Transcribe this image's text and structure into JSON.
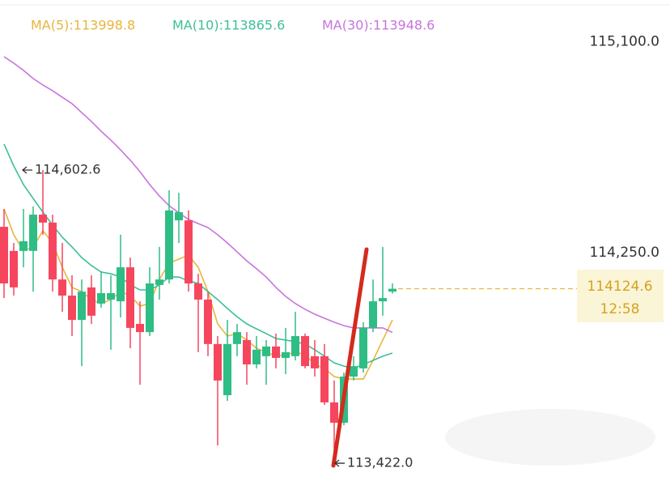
{
  "chart_data": {
    "type": "candlestick",
    "ylim": [
      113350.4,
      115287.4
    ],
    "yticks": [
      {
        "value": 115100,
        "label": "115,100.0"
      },
      {
        "value": 114250,
        "label": "114,250.0"
      }
    ],
    "up_color": "#2ebd85",
    "down_color": "#f6465d",
    "candles": {
      "open": [
        114374,
        114277,
        114277,
        114277,
        114423,
        114391,
        114162,
        114097,
        113999,
        114130,
        114065,
        114081,
        114074,
        114211,
        113983,
        113950,
        114140,
        114162,
        114400,
        114400,
        114146,
        114081,
        113902,
        113696,
        113902,
        113918,
        113820,
        113853,
        113892,
        113846,
        113853,
        113934,
        113853,
        113853,
        113667,
        113585,
        113771,
        113804,
        113967,
        114074,
        114113
      ],
      "high": [
        114446,
        114309,
        114446,
        114456,
        114602.6,
        114423,
        114309,
        114179,
        114162,
        114179,
        114195,
        114179,
        114342,
        114250,
        114074,
        114211,
        114293,
        114521,
        114511,
        114440,
        114185,
        114113,
        113934,
        113999,
        113983,
        113950,
        113934,
        113918,
        113944,
        113967,
        114032,
        113944,
        113918,
        113902,
        113755,
        113787,
        113853,
        113990,
        114162,
        114293,
        114146
      ],
      "low": [
        114087,
        114097,
        114211,
        114113,
        114342,
        114113,
        114032,
        113934,
        113813,
        113983,
        114048,
        113879,
        114009,
        113885,
        113738,
        113934,
        114081,
        114146,
        114309,
        114113,
        113869,
        113853,
        113494,
        113673,
        113853,
        113738,
        113804,
        113738,
        113804,
        113781,
        113836,
        113804,
        113771,
        113657,
        113422,
        113575,
        113755,
        113787,
        113950,
        114016,
        114105
      ],
      "close": [
        114146,
        114130,
        114316,
        114423,
        114391,
        114162,
        114097,
        113999,
        114113,
        114016,
        114107,
        114107,
        114211,
        113967,
        113950,
        114146,
        114162,
        114440,
        114433,
        114146,
        114081,
        113902,
        113755,
        113902,
        113950,
        113820,
        113879,
        113892,
        113846,
        113869,
        113934,
        113813,
        113804,
        113667,
        113585,
        113771,
        113813,
        113967,
        114074,
        114087,
        114124.6
      ]
    },
    "series": [
      {
        "name": "MA(5):113998.8",
        "color": "#e9b53c",
        "values": [
          114446,
          114342,
          114277,
          114293,
          114358,
          114309,
          114211,
          114130,
          114113,
          114081,
          114065,
          114081,
          114113,
          114097,
          114055,
          114065,
          114162,
          114228,
          114244,
          114260,
          114211,
          114113,
          113983,
          113934,
          113944,
          113918,
          113885,
          113869,
          113853,
          113859,
          113869,
          113859,
          113820,
          113804,
          113771,
          113761,
          113761,
          113761,
          113836,
          113918,
          113998.8
        ]
      },
      {
        "name": "MA(10):113865.6",
        "color": "#3dbf98",
        "values": [
          114707,
          114619,
          114544,
          114488,
          114433,
          114381,
          114332,
          114293,
          114250,
          114218,
          114192,
          114185,
          114172,
          114140,
          114120,
          114120,
          114140,
          114172,
          114172,
          114156,
          114146,
          114113,
          114081,
          114045,
          114012,
          113983,
          113963,
          113944,
          113924,
          113918,
          113911,
          113902,
          113879,
          113853,
          113826,
          113813,
          113804,
          113820,
          113836,
          113853,
          113865.6
        ]
      },
      {
        "name": "MA(30):113948.6",
        "color": "#c874dc",
        "values": [
          115059,
          115033,
          115004,
          114971,
          114945,
          114922,
          114896,
          114870,
          114834,
          114798,
          114759,
          114723,
          114684,
          114642,
          114596,
          114544,
          114498,
          114459,
          114430,
          114404,
          114387,
          114371,
          114342,
          114309,
          114273,
          114237,
          114205,
          114172,
          114130,
          114094,
          114065,
          114042,
          114022,
          114006,
          113990,
          113976,
          113967,
          113967,
          113967,
          113967,
          113948.6
        ]
      }
    ],
    "current_price": 114124.6,
    "countdown": "12:58",
    "annotations": [
      {
        "value": 114602.6,
        "label": "114,602.6"
      },
      {
        "value": 113422,
        "label": "113,422.0"
      }
    ]
  }
}
